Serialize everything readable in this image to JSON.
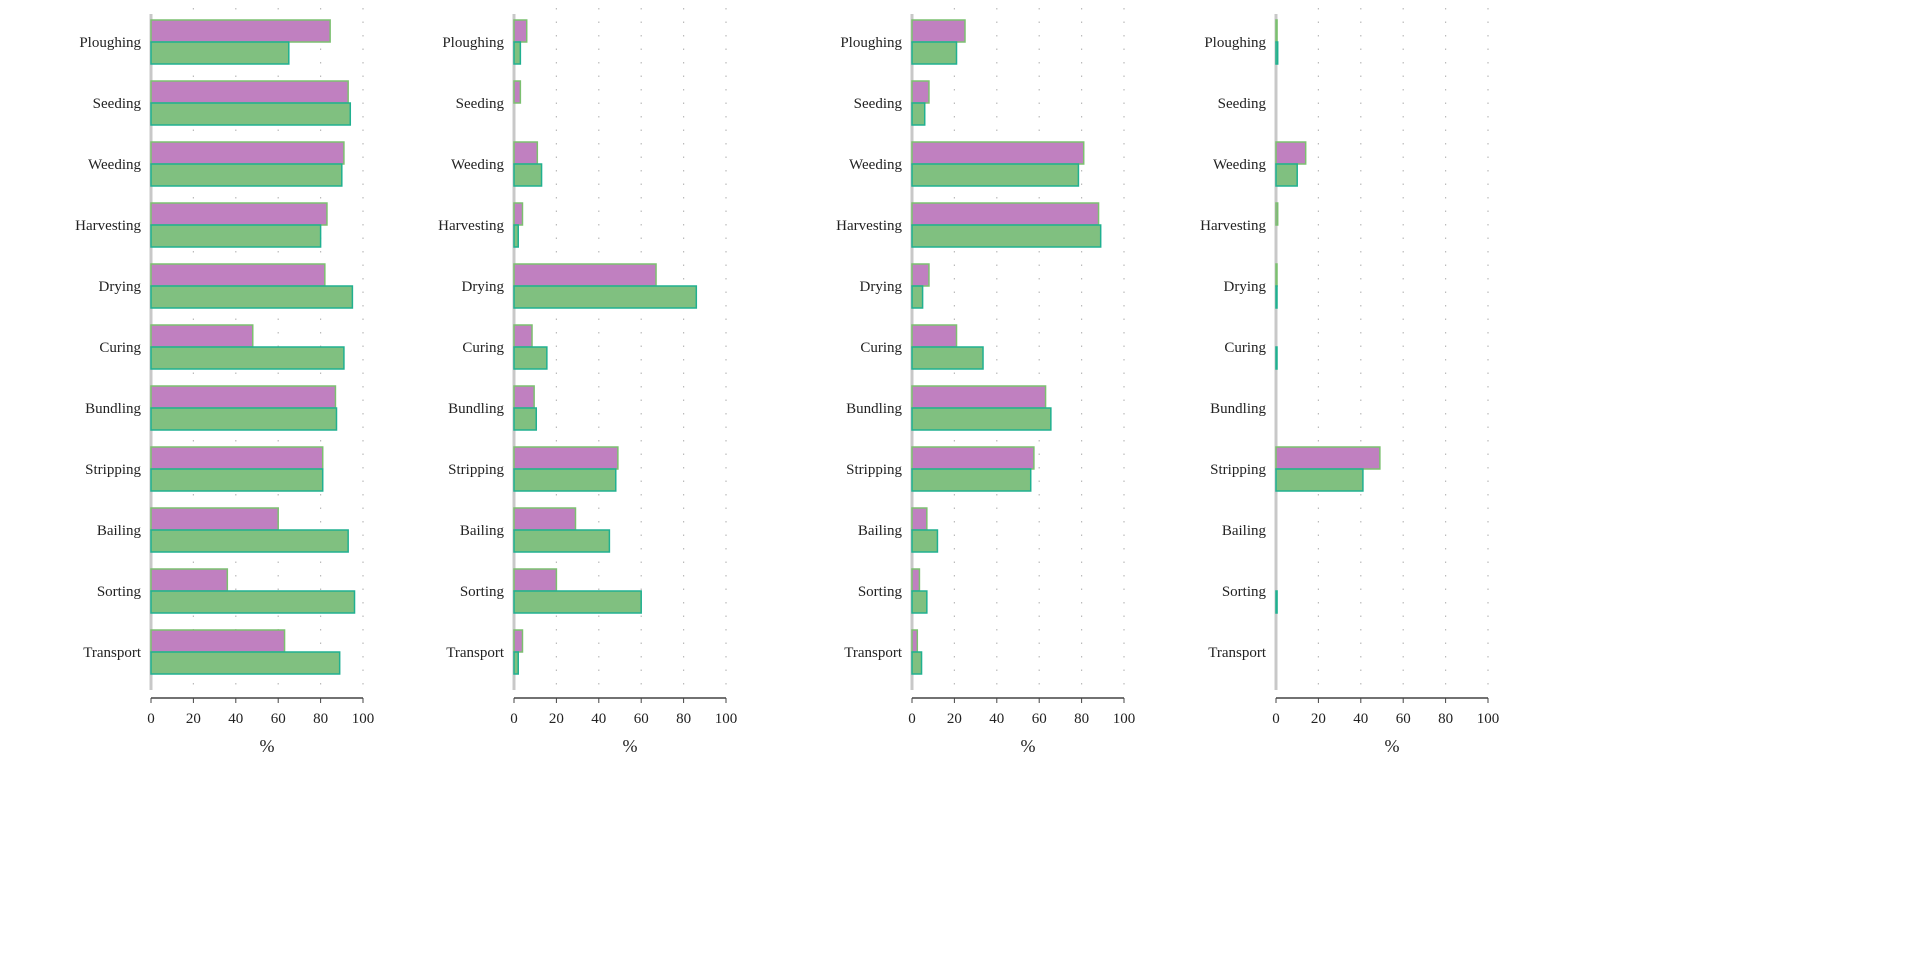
{
  "chart_data": [
    {
      "type": "bar",
      "orientation": "horizontal",
      "categories": [
        "Ploughing",
        "Seeding",
        "Weeding",
        "Harvesting",
        "Drying",
        "Curing",
        "Bundling",
        "Stripping",
        "Bailing",
        "Sorting",
        "Transport"
      ],
      "series": [
        {
          "values": [
            84.5,
            93,
            91,
            83,
            82,
            48,
            87,
            81,
            60,
            36,
            63
          ],
          "color": "#c080c0"
        },
        {
          "values": [
            65,
            94,
            90,
            80,
            95,
            91,
            87.5,
            81,
            93,
            96,
            89
          ],
          "color": "#80c080"
        }
      ],
      "xlabel": "%",
      "xlim": [
        0,
        100
      ],
      "xticks": [
        "0",
        "20",
        "40",
        "60",
        "80",
        "100"
      ],
      "grid": "dotted vertical"
    },
    {
      "type": "bar",
      "orientation": "horizontal",
      "categories": [
        "Ploughing",
        "Seeding",
        "Weeding",
        "Harvesting",
        "Drying",
        "Curing",
        "Bundling",
        "Stripping",
        "Bailing",
        "Sorting",
        "Transport"
      ],
      "series": [
        {
          "values": [
            6,
            3,
            11,
            4,
            67,
            8.5,
            9.5,
            49,
            29,
            20,
            4
          ],
          "color": "#c080c0"
        },
        {
          "values": [
            3,
            0,
            13,
            2,
            86,
            15.5,
            10.5,
            48,
            45,
            60,
            2
          ],
          "color": "#80c080"
        }
      ],
      "xlabel": "%",
      "xlim": [
        0,
        100
      ],
      "xticks": [
        "0",
        "20",
        "40",
        "60",
        "80",
        "100"
      ],
      "grid": "dotted vertical"
    },
    {
      "type": "bar",
      "orientation": "horizontal",
      "categories": [
        "Ploughing",
        "Seeding",
        "Weeding",
        "Harvesting",
        "Drying",
        "Curing",
        "Bundling",
        "Stripping",
        "Bailing",
        "Sorting",
        "Transport"
      ],
      "series": [
        {
          "values": [
            25,
            8,
            81,
            88,
            8,
            21,
            63,
            57.5,
            7,
            3.5,
            2.5
          ],
          "color": "#c080c0"
        },
        {
          "values": [
            21,
            6,
            78.5,
            89,
            5,
            33.5,
            65.5,
            56,
            12,
            7,
            4.5
          ],
          "color": "#80c080"
        }
      ],
      "xlabel": "%",
      "xlim": [
        0,
        100
      ],
      "xticks": [
        "0",
        "20",
        "40",
        "60",
        "80",
        "100"
      ],
      "grid": "dotted vertical"
    },
    {
      "type": "bar",
      "orientation": "horizontal",
      "categories": [
        "Ploughing",
        "Seeding",
        "Weeding",
        "Harvesting",
        "Drying",
        "Curing",
        "Bundling",
        "Stripping",
        "Bailing",
        "Sorting",
        "Transport"
      ],
      "series": [
        {
          "values": [
            0.5,
            0,
            14,
            0.8,
            0.4,
            0,
            0,
            49,
            0,
            0,
            0
          ],
          "color": "#c080c0"
        },
        {
          "values": [
            0.8,
            0,
            10,
            0,
            0.3,
            0.2,
            0,
            41,
            0,
            0.5,
            0
          ],
          "color": "#80c080"
        }
      ],
      "xlabel": "%",
      "xlim": [
        0,
        100
      ],
      "xticks": [
        "0",
        "20",
        "40",
        "60",
        "80",
        "100"
      ],
      "grid": "dotted vertical"
    }
  ]
}
